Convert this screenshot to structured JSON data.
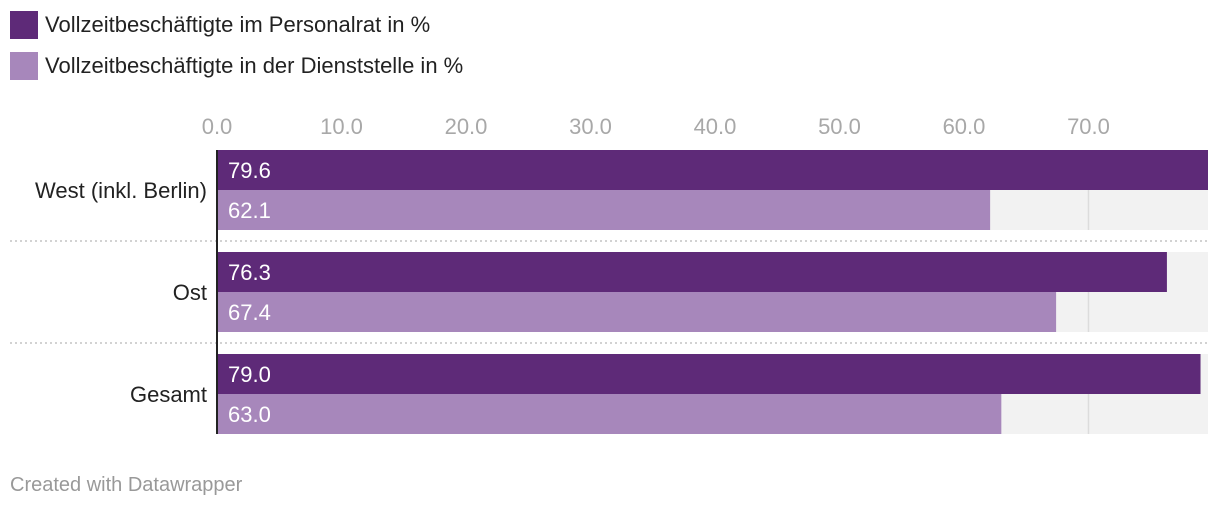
{
  "legend": [
    {
      "label": "Vollzeitbeschäftigte im Personalrat in %",
      "color": "#5e2a78"
    },
    {
      "label": "Vollzeitbeschäftigte in der Dienststelle in %",
      "color": "#a787bb"
    }
  ],
  "chart_data": {
    "type": "bar",
    "orientation": "horizontal",
    "categories": [
      "West (inkl. Berlin)",
      "Ost",
      "Gesamt"
    ],
    "series": [
      {
        "name": "Vollzeitbeschäftigte im Personalrat in %",
        "values": [
          79.6,
          76.3,
          79.0
        ],
        "value_labels": [
          "79.6",
          "76.3",
          "79.0"
        ]
      },
      {
        "name": "Vollzeitbeschäftigte in der Dienststelle in %",
        "values": [
          62.1,
          67.4,
          63.0
        ],
        "value_labels": [
          "62.1",
          "67.4",
          "63.0"
        ]
      }
    ],
    "xlim": [
      0,
      79.6
    ],
    "ticks": [
      0,
      10,
      20,
      30,
      40,
      50,
      60,
      70
    ],
    "tick_labels": [
      "0.0",
      "10.0",
      "20.0",
      "30.0",
      "40.0",
      "50.0",
      "60.0",
      "70.0"
    ],
    "grid": true,
    "legend_position": "top-left",
    "title": "",
    "xlabel": "",
    "ylabel": ""
  },
  "footer": {
    "credit": "Created with Datawrapper"
  }
}
